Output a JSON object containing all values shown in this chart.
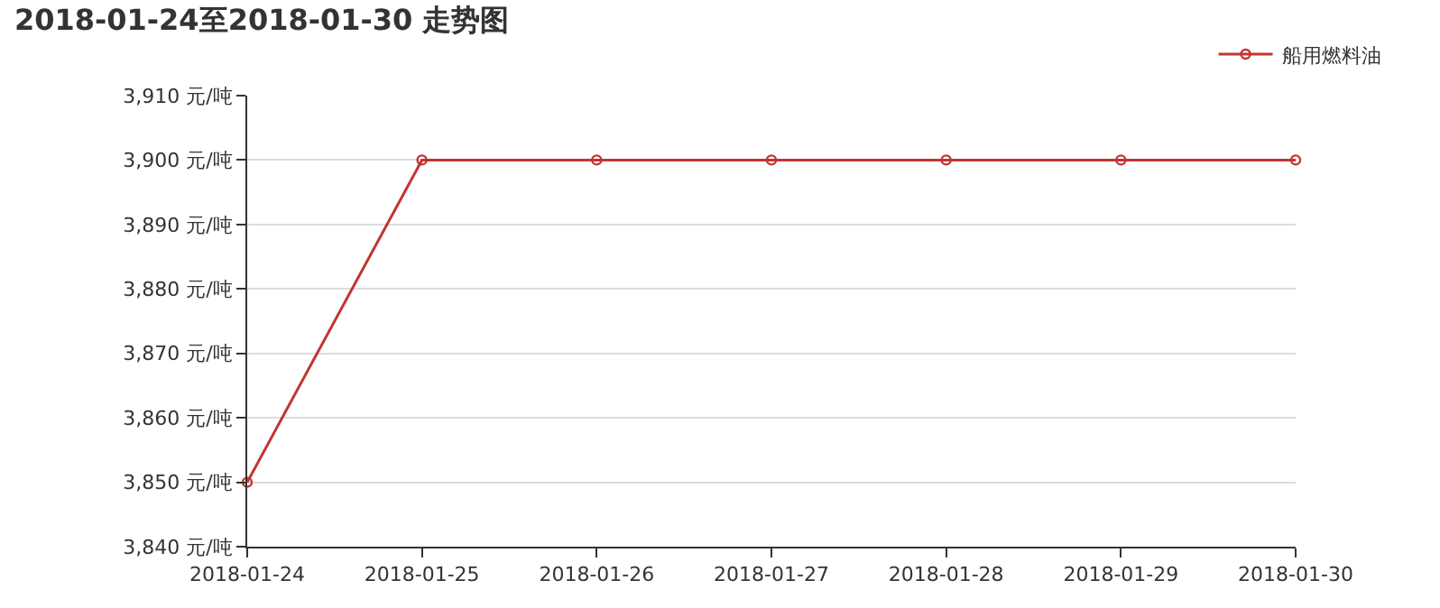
{
  "chart_data": {
    "type": "line",
    "title": "2018-01-24至2018-01-30 走势图",
    "categories": [
      "2018-01-24",
      "2018-01-25",
      "2018-01-26",
      "2018-01-27",
      "2018-01-28",
      "2018-01-29",
      "2018-01-30"
    ],
    "series": [
      {
        "name": "船用燃料油",
        "color": "#c23531",
        "values": [
          3850,
          3900,
          3900,
          3900,
          3900,
          3900,
          3900
        ]
      }
    ],
    "ylim": [
      3840,
      3910
    ],
    "yticks": [
      {
        "value": 3840,
        "label": "3,840 元/吨"
      },
      {
        "value": 3850,
        "label": "3,850 元/吨"
      },
      {
        "value": 3860,
        "label": "3,860 元/吨"
      },
      {
        "value": 3870,
        "label": "3,870 元/吨"
      },
      {
        "value": 3880,
        "label": "3,880 元/吨"
      },
      {
        "value": 3890,
        "label": "3,890 元/吨"
      },
      {
        "value": 3900,
        "label": "3,900 元/吨"
      },
      {
        "value": 3910,
        "label": "3,910 元/吨"
      }
    ],
    "grid": "y",
    "legend": "top right",
    "marker": "circle",
    "line_style": "solid"
  }
}
